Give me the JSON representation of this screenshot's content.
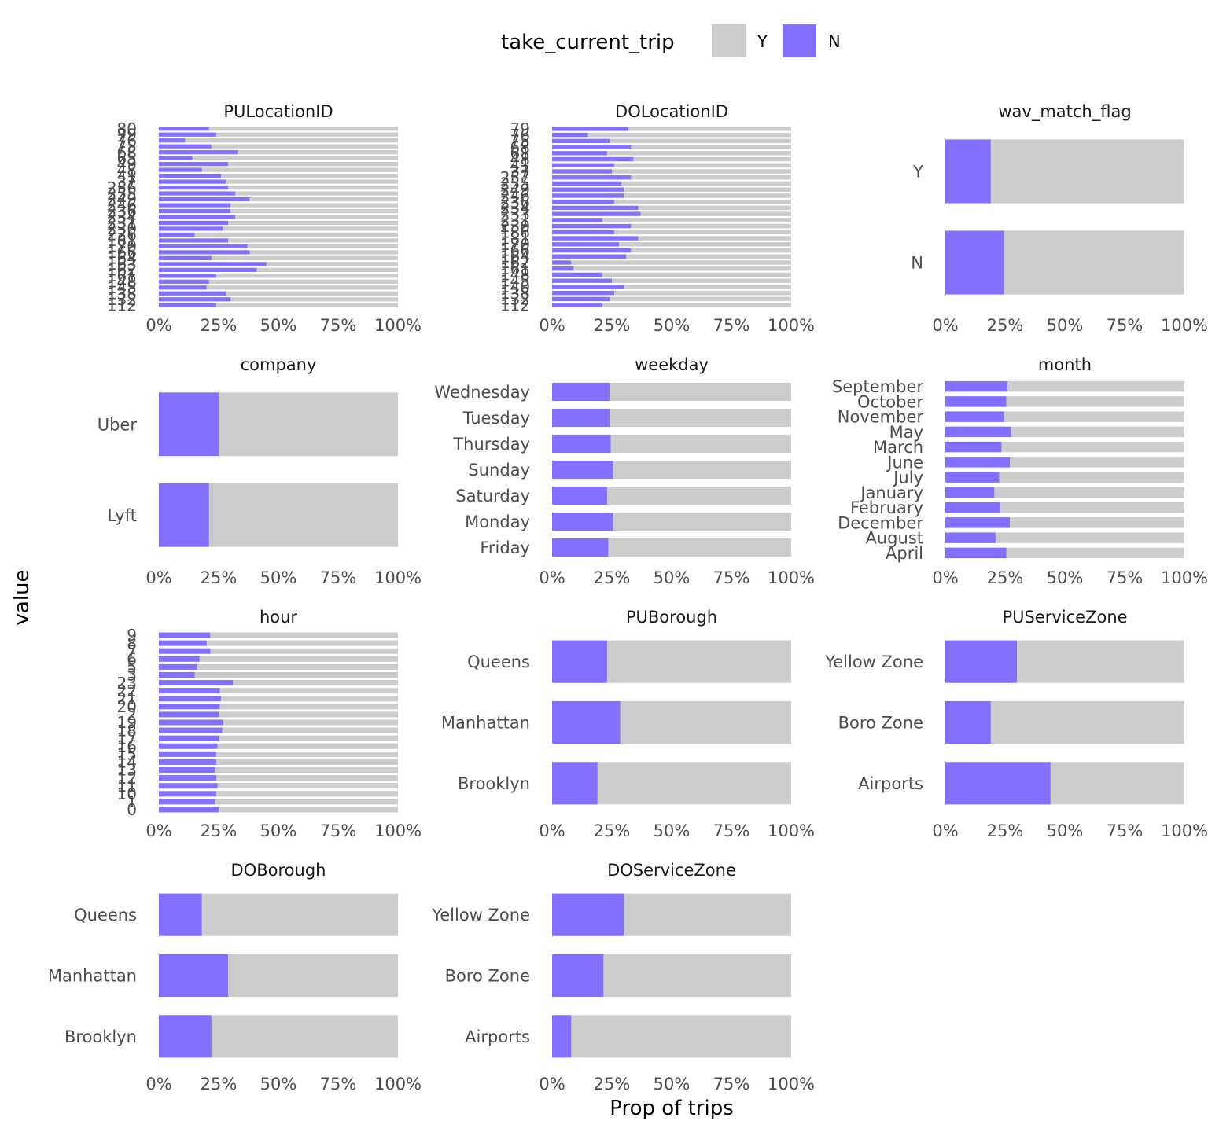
{
  "legend": {
    "title": "take_current_trip",
    "entries": [
      {
        "label": "Y",
        "color": "#cccccc"
      },
      {
        "label": "N",
        "color": "#8470ff"
      }
    ]
  },
  "axes": {
    "ylabel": "value",
    "xlabel": "Prop of trips",
    "x_ticks": [
      "0%",
      "25%",
      "50%",
      "75%",
      "100%"
    ]
  },
  "chart_data": [
    {
      "type": "bar",
      "stacked": true,
      "orientation": "horizontal",
      "title": "PULocationID",
      "categories": [
        "80",
        "79",
        "76",
        "75",
        "68",
        "65",
        "49",
        "48",
        "41",
        "37",
        "256",
        "255",
        "249",
        "246",
        "236",
        "234",
        "231",
        "230",
        "226",
        "181",
        "170",
        "166",
        "164",
        "163",
        "162",
        "161",
        "148",
        "145",
        "138",
        "132",
        "112"
      ],
      "series": [
        {
          "name": "N",
          "values": [
            0.21,
            0.24,
            0.11,
            0.22,
            0.33,
            0.14,
            0.29,
            0.18,
            0.26,
            0.28,
            0.29,
            0.32,
            0.38,
            0.3,
            0.3,
            0.32,
            0.29,
            0.27,
            0.15,
            0.29,
            0.37,
            0.38,
            0.22,
            0.45,
            0.41,
            0.24,
            0.21,
            0.2,
            0.28,
            0.3,
            0.24
          ]
        },
        {
          "name": "Y",
          "values": [
            0.79,
            0.76,
            0.89,
            0.78,
            0.67,
            0.86,
            0.71,
            0.82,
            0.74,
            0.72,
            0.71,
            0.68,
            0.62,
            0.7,
            0.7,
            0.68,
            0.71,
            0.73,
            0.85,
            0.71,
            0.63,
            0.62,
            0.78,
            0.55,
            0.59,
            0.76,
            0.79,
            0.8,
            0.72,
            0.7,
            0.76
          ]
        }
      ],
      "xlim": [
        0,
        1
      ]
    },
    {
      "type": "bar",
      "stacked": true,
      "orientation": "horizontal",
      "title": "DOLocationID",
      "categories": [
        "79",
        "76",
        "75",
        "68",
        "61",
        "48",
        "41",
        "37",
        "257",
        "255",
        "249",
        "246",
        "236",
        "234",
        "233",
        "231",
        "230",
        "186",
        "181",
        "170",
        "166",
        "164",
        "162",
        "161",
        "148",
        "145",
        "140",
        "138",
        "132",
        "112"
      ],
      "series": [
        {
          "name": "N",
          "values": [
            0.32,
            0.15,
            0.24,
            0.33,
            0.23,
            0.34,
            0.26,
            0.25,
            0.33,
            0.29,
            0.3,
            0.3,
            0.26,
            0.36,
            0.37,
            0.21,
            0.33,
            0.26,
            0.36,
            0.28,
            0.33,
            0.31,
            0.08,
            0.09,
            0.21,
            0.25,
            0.3,
            0.26,
            0.24,
            0.21
          ]
        },
        {
          "name": "Y",
          "values": [
            0.68,
            0.85,
            0.76,
            0.67,
            0.77,
            0.66,
            0.74,
            0.75,
            0.67,
            0.71,
            0.7,
            0.7,
            0.74,
            0.64,
            0.63,
            0.79,
            0.67,
            0.74,
            0.64,
            0.72,
            0.67,
            0.69,
            0.92,
            0.91,
            0.79,
            0.75,
            0.7,
            0.74,
            0.76,
            0.79
          ]
        }
      ],
      "xlim": [
        0,
        1
      ]
    },
    {
      "type": "bar",
      "stacked": true,
      "orientation": "horizontal",
      "title": "wav_match_flag",
      "categories": [
        "Y",
        "N"
      ],
      "series": [
        {
          "name": "N",
          "values": [
            0.19,
            0.245
          ]
        },
        {
          "name": "Y",
          "values": [
            0.81,
            0.755
          ]
        }
      ],
      "xlim": [
        0,
        1
      ]
    },
    {
      "type": "bar",
      "stacked": true,
      "orientation": "horizontal",
      "title": "company",
      "categories": [
        "Uber",
        "Lyft"
      ],
      "series": [
        {
          "name": "N",
          "values": [
            0.25,
            0.21
          ]
        },
        {
          "name": "Y",
          "values": [
            0.75,
            0.79
          ]
        }
      ],
      "xlim": [
        0,
        1
      ]
    },
    {
      "type": "bar",
      "stacked": true,
      "orientation": "horizontal",
      "title": "weekday",
      "categories": [
        "Wednesday",
        "Tuesday",
        "Thursday",
        "Sunday",
        "Saturday",
        "Monday",
        "Friday"
      ],
      "series": [
        {
          "name": "N",
          "values": [
            0.24,
            0.24,
            0.245,
            0.255,
            0.23,
            0.255,
            0.235
          ]
        },
        {
          "name": "Y",
          "values": [
            0.76,
            0.76,
            0.755,
            0.745,
            0.77,
            0.745,
            0.765
          ]
        }
      ],
      "xlim": [
        0,
        1
      ]
    },
    {
      "type": "bar",
      "stacked": true,
      "orientation": "horizontal",
      "title": "month",
      "categories": [
        "September",
        "October",
        "November",
        "May",
        "March",
        "June",
        "July",
        "January",
        "February",
        "December",
        "August",
        "April"
      ],
      "series": [
        {
          "name": "N",
          "values": [
            0.26,
            0.255,
            0.245,
            0.275,
            0.235,
            0.27,
            0.225,
            0.205,
            0.23,
            0.27,
            0.21,
            0.255
          ]
        },
        {
          "name": "Y",
          "values": [
            0.74,
            0.745,
            0.755,
            0.725,
            0.765,
            0.73,
            0.775,
            0.795,
            0.77,
            0.73,
            0.79,
            0.745
          ]
        }
      ],
      "xlim": [
        0,
        1
      ]
    },
    {
      "type": "bar",
      "stacked": true,
      "orientation": "horizontal",
      "title": "hour",
      "categories": [
        "9",
        "8",
        "7",
        "6",
        "5",
        "3",
        "23",
        "22",
        "21",
        "20",
        "2",
        "19",
        "18",
        "17",
        "16",
        "15",
        "14",
        "13",
        "12",
        "11",
        "10",
        "1",
        "0"
      ],
      "series": [
        {
          "name": "N",
          "values": [
            0.215,
            0.2,
            0.215,
            0.17,
            0.16,
            0.15,
            0.31,
            0.255,
            0.26,
            0.255,
            0.25,
            0.27,
            0.265,
            0.25,
            0.245,
            0.24,
            0.24,
            0.235,
            0.24,
            0.245,
            0.24,
            0.235,
            0.25
          ]
        },
        {
          "name": "Y",
          "values": [
            0.785,
            0.8,
            0.785,
            0.83,
            0.84,
            0.85,
            0.69,
            0.745,
            0.74,
            0.745,
            0.75,
            0.73,
            0.735,
            0.75,
            0.755,
            0.76,
            0.76,
            0.765,
            0.76,
            0.755,
            0.76,
            0.765,
            0.75
          ]
        }
      ],
      "xlim": [
        0,
        1
      ]
    },
    {
      "type": "bar",
      "stacked": true,
      "orientation": "horizontal",
      "title": "PUBorough",
      "categories": [
        "Queens",
        "Manhattan",
        "Brooklyn"
      ],
      "series": [
        {
          "name": "N",
          "values": [
            0.23,
            0.285,
            0.19
          ]
        },
        {
          "name": "Y",
          "values": [
            0.77,
            0.715,
            0.81
          ]
        }
      ],
      "xlim": [
        0,
        1
      ]
    },
    {
      "type": "bar",
      "stacked": true,
      "orientation": "horizontal",
      "title": "PUServiceZone",
      "categories": [
        "Yellow Zone",
        "Boro Zone",
        "Airports"
      ],
      "series": [
        {
          "name": "N",
          "values": [
            0.3,
            0.19,
            0.44
          ]
        },
        {
          "name": "Y",
          "values": [
            0.7,
            0.81,
            0.56
          ]
        }
      ],
      "xlim": [
        0,
        1
      ]
    },
    {
      "type": "bar",
      "stacked": true,
      "orientation": "horizontal",
      "title": "DOBorough",
      "categories": [
        "Queens",
        "Manhattan",
        "Brooklyn"
      ],
      "series": [
        {
          "name": "N",
          "values": [
            0.18,
            0.29,
            0.22
          ]
        },
        {
          "name": "Y",
          "values": [
            0.82,
            0.71,
            0.78
          ]
        }
      ],
      "xlim": [
        0,
        1
      ]
    },
    {
      "type": "bar",
      "stacked": true,
      "orientation": "horizontal",
      "title": "DOServiceZone",
      "categories": [
        "Yellow Zone",
        "Boro Zone",
        "Airports"
      ],
      "series": [
        {
          "name": "N",
          "values": [
            0.3,
            0.215,
            0.08
          ]
        },
        {
          "name": "Y",
          "values": [
            0.7,
            0.785,
            0.92
          ]
        }
      ],
      "xlim": [
        0,
        1
      ]
    }
  ]
}
